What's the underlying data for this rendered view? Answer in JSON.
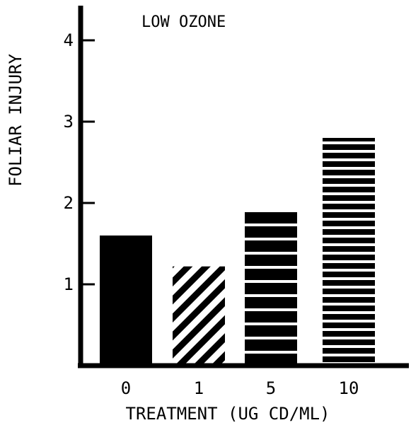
{
  "chart_data": {
    "type": "bar",
    "title": "LOW OZONE",
    "xlabel": "TREATMENT (UG CD/ML)",
    "ylabel": "FOLIAR INJURY",
    "categories": [
      "0",
      "1",
      "5",
      "10"
    ],
    "values": [
      1.6,
      1.22,
      1.92,
      2.8
    ],
    "bar_patterns": [
      "solid",
      "diagonal-stripes",
      "wide-horizontal-stripes",
      "narrow-horizontal-stripes"
    ],
    "yticks": [
      "1",
      "2",
      "3",
      "4"
    ],
    "ylim": [
      0,
      4.4
    ],
    "grid": false,
    "legend": "none",
    "colors": {
      "ink": "#000000",
      "background": "#ffffff"
    }
  }
}
